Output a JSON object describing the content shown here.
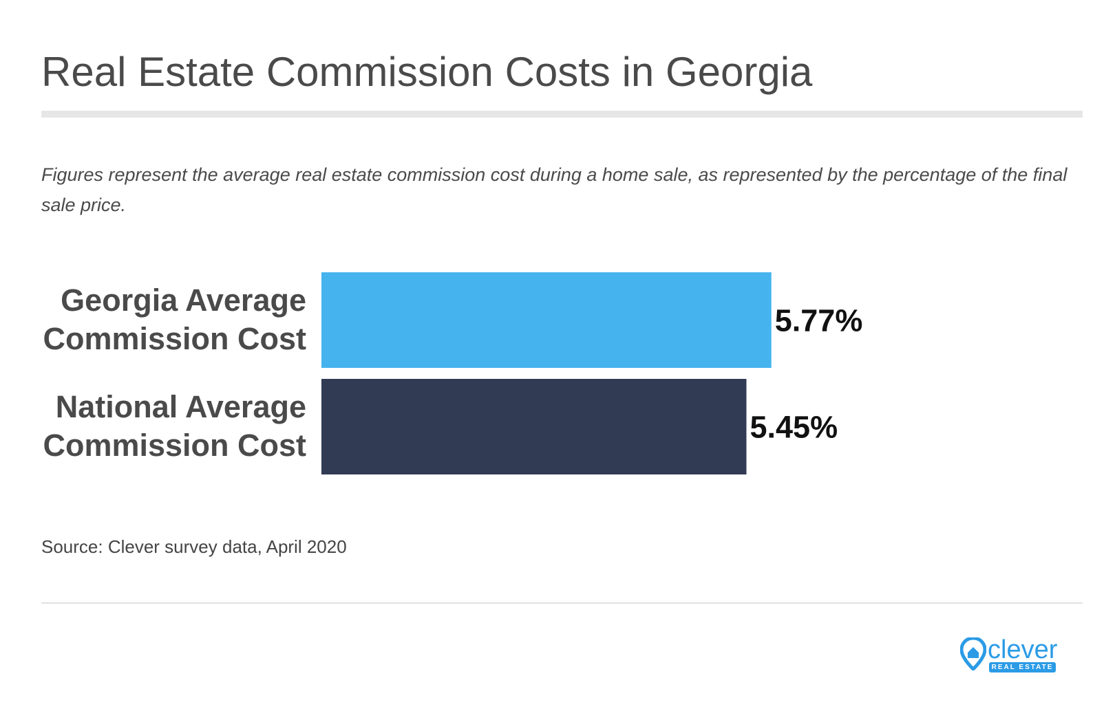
{
  "title": "Real Estate Commission Costs in Georgia",
  "subtitle": "Figures represent the average real estate commission cost during a home sale, as represented by the percentage of the final sale price.",
  "source": "Source: Clever survey data, April 2020",
  "brand": {
    "name": "clever",
    "tagline": "REAL ESTATE",
    "color": "#2b9be6"
  },
  "chart_data": {
    "type": "bar",
    "orientation": "horizontal",
    "title": "Real Estate Commission Costs in Georgia",
    "xlabel": "",
    "ylabel": "",
    "grid": false,
    "unit": "%",
    "categories": [
      "Georgia Average Commission Cost",
      "National Average Commission Cost"
    ],
    "category_lines": [
      [
        "Georgia Average",
        "Commission Cost"
      ],
      [
        "National Average",
        "Commission Cost"
      ]
    ],
    "values": [
      5.77,
      5.45
    ],
    "value_labels": [
      "5.77%",
      "5.45%"
    ],
    "colors": [
      "#45b3ee",
      "#313b54"
    ],
    "xlim": [
      0,
      10
    ]
  }
}
